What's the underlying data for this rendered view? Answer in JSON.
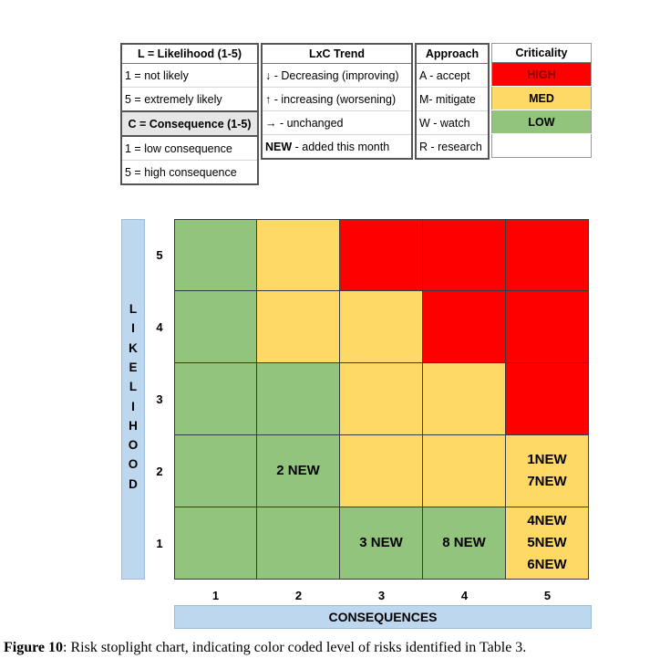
{
  "legend": {
    "likelihood": {
      "header": "L = Likelihood (1-5)",
      "rows": [
        "1 = not likely",
        "5 = extremely likely"
      ],
      "subheader": "C = Consequence (1-5)",
      "rows2": [
        "1 = low consequence",
        "5 = high consequence"
      ]
    },
    "trend": {
      "header": "LxC Trend",
      "rows": [
        {
          "bold": "↓",
          "text": " - Decreasing (improving)"
        },
        {
          "bold": "↑",
          "text": " - increasing (worsening)"
        },
        {
          "bold": "→",
          "text": " - unchanged"
        },
        {
          "bold": "NEW",
          "text": " - added this month"
        }
      ]
    },
    "approach": {
      "header": "Approach",
      "rows": [
        "A - accept",
        "M- mitigate",
        "W - watch",
        "R - research"
      ]
    },
    "criticality": {
      "header": "Criticality",
      "rows": [
        {
          "label": "HIGH",
          "color": "#ff0000"
        },
        {
          "label": "MED",
          "color": "#ffd966"
        },
        {
          "label": "LOW",
          "color": "#93c47d"
        }
      ]
    }
  },
  "chart_data": {
    "type": "heatmap",
    "ylabel": "LIKELIHOOD",
    "xlabel": "CONSEQUENCES",
    "x": [
      1,
      2,
      3,
      4,
      5
    ],
    "y": [
      5,
      4,
      3,
      2,
      1
    ],
    "colors": {
      "LOW": "#93c47d",
      "MED": "#ffd966",
      "HIGH": "#ff0000"
    },
    "levels": [
      [
        "LOW",
        "MED",
        "HIGH",
        "HIGH",
        "HIGH"
      ],
      [
        "LOW",
        "MED",
        "MED",
        "HIGH",
        "HIGH"
      ],
      [
        "LOW",
        "LOW",
        "MED",
        "MED",
        "HIGH"
      ],
      [
        "LOW",
        "LOW",
        "MED",
        "MED",
        "MED"
      ],
      [
        "LOW",
        "LOW",
        "LOW",
        "LOW",
        "MED"
      ]
    ],
    "labels": [
      [
        [],
        [],
        [],
        [],
        []
      ],
      [
        [],
        [],
        [],
        [],
        []
      ],
      [
        [],
        [],
        [],
        [],
        []
      ],
      [
        [],
        [
          "2 NEW"
        ],
        [],
        [],
        [
          "1NEW",
          "7NEW"
        ]
      ],
      [
        [],
        [],
        [
          "3 NEW"
        ],
        [
          "8 NEW"
        ],
        [
          "4NEW",
          "5NEW",
          "6NEW"
        ]
      ]
    ]
  },
  "caption": {
    "label": "Figure 10",
    "text": ": Risk stoplight chart, indicating color coded level of risks identified in Table 3."
  }
}
